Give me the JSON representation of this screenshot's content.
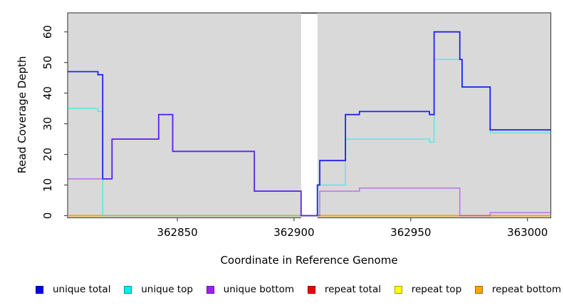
{
  "chart_data": {
    "type": "line",
    "subtype": "step",
    "title": "",
    "xlabel": "Coordinate in Reference Genome",
    "ylabel": "Read Coverage Depth",
    "xlim": [
      362803,
      363010
    ],
    "ylim": [
      0,
      66
    ],
    "xticks": [
      362850,
      362900,
      362950,
      363000
    ],
    "yticks": [
      0,
      10,
      20,
      30,
      40,
      50,
      60
    ],
    "grid": false,
    "legend_position": "bottom",
    "plot_background": "#d9d9d9",
    "masked_region": {
      "x_start": 362903,
      "x_end": 362910,
      "color": "#ffffff"
    },
    "x_end": 363010,
    "series": [
      {
        "name": "repeat total",
        "color": "#e00000",
        "opacity": 1,
        "width": 1.5,
        "steps": [
          [
            362803,
            0
          ]
        ]
      },
      {
        "name": "repeat top",
        "color": "#ffe800",
        "opacity": 1,
        "width": 1.5,
        "steps": [
          [
            362803,
            0
          ]
        ]
      },
      {
        "name": "repeat bottom",
        "color": "#ff9e00",
        "opacity": 1,
        "width": 1.7,
        "steps": [
          [
            362803,
            0
          ]
        ]
      },
      {
        "name": "unique top",
        "color": "#00f0f0",
        "opacity": 0.6,
        "width": 1.5,
        "steps": [
          [
            362803,
            35
          ],
          [
            362816,
            34
          ],
          [
            362818,
            0
          ],
          [
            362910,
            10
          ],
          [
            362922,
            25
          ],
          [
            362958,
            24
          ],
          [
            362960,
            51
          ],
          [
            362972,
            42
          ],
          [
            362984,
            27
          ]
        ]
      },
      {
        "name": "unique total",
        "color": "#0808f0",
        "opacity": 0.88,
        "width": 1.8,
        "steps": [
          [
            362803,
            47
          ],
          [
            362816,
            46
          ],
          [
            362818,
            12
          ],
          [
            362822,
            25
          ],
          [
            362842,
            33
          ],
          [
            362848,
            21
          ],
          [
            362883,
            8
          ],
          [
            362903,
            0
          ],
          [
            362910,
            10
          ],
          [
            362911,
            18
          ],
          [
            362922,
            33
          ],
          [
            362928,
            34
          ],
          [
            362958,
            33
          ],
          [
            362960,
            60
          ],
          [
            362971,
            51
          ],
          [
            362972,
            42
          ],
          [
            362984,
            28
          ]
        ]
      },
      {
        "name": "unique bottom",
        "color": "#a020f0",
        "opacity": 0.55,
        "width": 1.5,
        "steps": [
          [
            362803,
            12
          ],
          [
            362822,
            25
          ],
          [
            362842,
            33
          ],
          [
            362848,
            21
          ],
          [
            362883,
            8
          ],
          [
            362903,
            0
          ],
          [
            362911,
            8
          ],
          [
            362928,
            9
          ],
          [
            362971,
            0
          ],
          [
            362984,
            1
          ]
        ]
      }
    ],
    "legend": [
      {
        "label": "unique total",
        "color": "#0000ee"
      },
      {
        "label": "unique top",
        "color": "#00eeee"
      },
      {
        "label": "unique bottom",
        "color": "#a020f0"
      },
      {
        "label": "repeat total",
        "color": "#ee0000"
      },
      {
        "label": "repeat top",
        "color": "#ffff00"
      },
      {
        "label": "repeat bottom",
        "color": "#ffa500"
      }
    ]
  }
}
